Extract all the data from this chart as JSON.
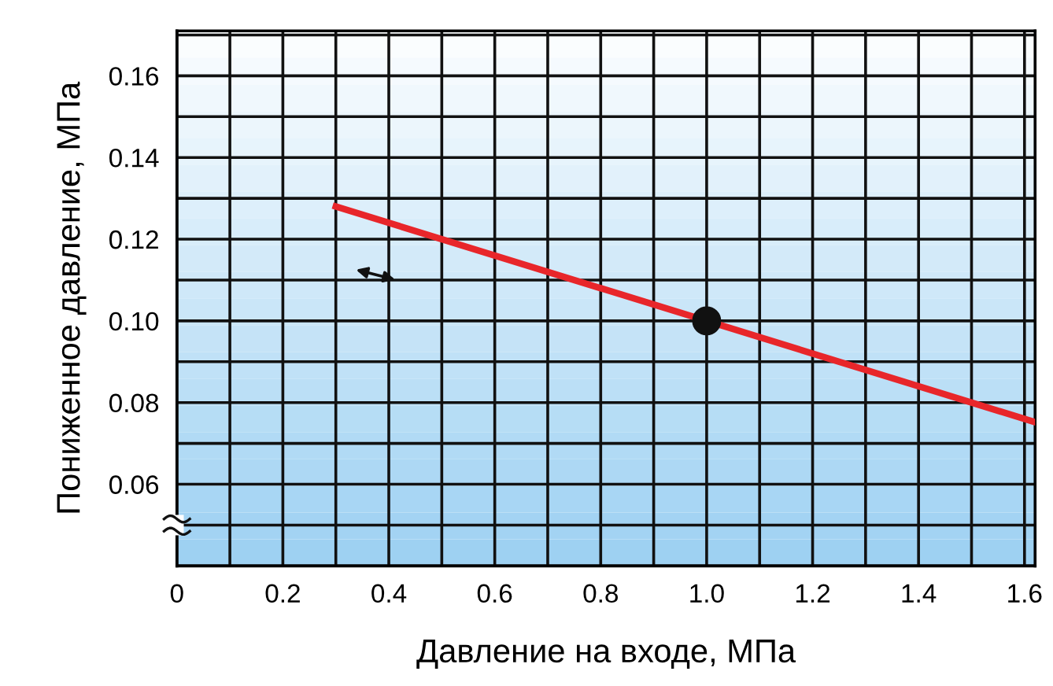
{
  "chart_data": {
    "type": "line",
    "xlabel": "Давление на входе, МПа",
    "ylabel": "Пониженное давление, МПа",
    "xlim": [
      0,
      1.62
    ],
    "ylim": [
      0.04,
      0.171
    ],
    "xticks": [
      {
        "value": 0,
        "label": "0"
      },
      0.2,
      0.4,
      0.6,
      0.8,
      {
        "value": 1.0,
        "label": "1.0"
      },
      1.2,
      1.4,
      1.6
    ],
    "yticks": [
      0.06,
      0.08,
      {
        "value": 0.1,
        "label": "0.10"
      },
      0.12,
      0.14,
      0.16
    ],
    "grid": true,
    "line_style": "solid",
    "series": [
      {
        "color": "#e8262a",
        "x": [
          0.3,
          1.62
        ],
        "values": [
          0.128,
          0.0752
        ]
      },
      {
        "type": "scatter",
        "marker": "circle",
        "color": "#111111",
        "x": [
          1.0
        ],
        "values": [
          0.1
        ]
      }
    ]
  }
}
